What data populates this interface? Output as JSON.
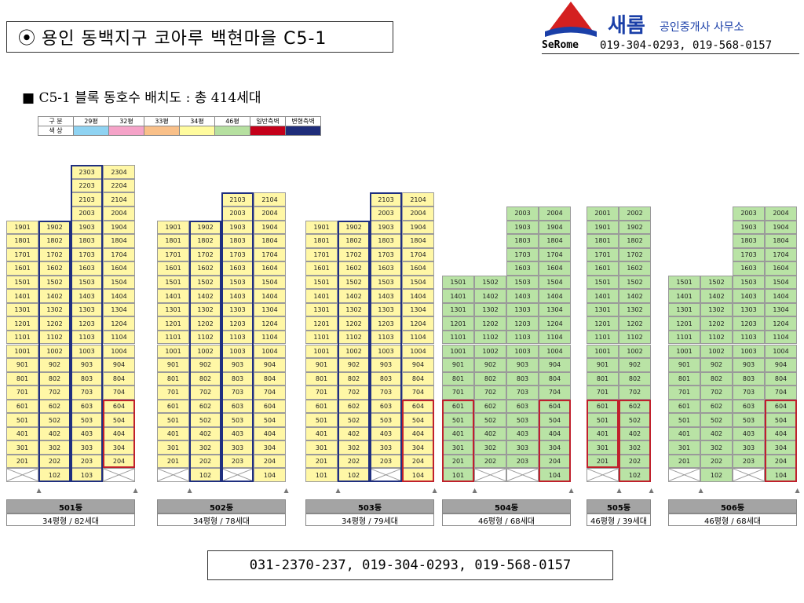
{
  "header": {
    "bullet": "⦿",
    "title": "용인 동백지구 코아루 백현마을 C5-1"
  },
  "logo": {
    "brand": "새롬",
    "office": "공인중개사 사무소",
    "latin": "SeRome",
    "phones": "019-304-0293, 019-568-0157",
    "colors": {
      "red": "#d42020",
      "blue": "#1a3fa8"
    }
  },
  "subtitle": "■ C5-1 블록 동호수 배치도 : 총 414세대",
  "legend": {
    "row1": [
      "구 분",
      "29평",
      "32평",
      "33평",
      "34평",
      "46평",
      "일반측벽",
      "변형측벽"
    ],
    "row2_label": "색 상",
    "colors": [
      "#8fd3f2",
      "#f5a3c8",
      "#f9c089",
      "#fffb9e",
      "#b6e0a0",
      "#c4001a",
      "#1f2d7a"
    ]
  },
  "colors": {
    "yellow": "#fff7a6",
    "green": "#b9e3a5",
    "red_border": "#c0202c",
    "blue_border": "#1f2f80"
  },
  "buildings": [
    {
      "id": "501",
      "label": "501동",
      "info": "34평형 / 82세대",
      "color": "yellow",
      "top_floor": 23,
      "floor1": [
        "",
        "102",
        "103",
        ""
      ],
      "col_tops": [
        19,
        19,
        23,
        23
      ],
      "x_letter": [
        0,
        3
      ],
      "blue_cols": [
        1,
        2
      ],
      "red_cols": [
        {
          "col": 3,
          "top": 6,
          "bottom": 2
        }
      ]
    },
    {
      "id": "502",
      "label": "502동",
      "info": "34평형 / 78세대",
      "color": "yellow",
      "top_floor": 21,
      "floor1": [
        "",
        "102",
        "",
        "104"
      ],
      "col_tops": [
        19,
        19,
        21,
        21
      ],
      "x_letter": [
        0,
        2
      ],
      "blue_cols": [
        1,
        2
      ],
      "red_cols": []
    },
    {
      "id": "503",
      "label": "503동",
      "info": "34평형 / 79세대",
      "color": "yellow",
      "top_floor": 21,
      "floor1": [
        "101",
        "102",
        "",
        "104"
      ],
      "col_tops": [
        19,
        19,
        21,
        21
      ],
      "x_letter": [
        2
      ],
      "blue_cols": [
        1,
        2
      ],
      "red_cols": [
        {
          "col": 3,
          "top": 6,
          "bottom": 1
        }
      ]
    },
    {
      "id": "504",
      "label": "504동",
      "info": "46평형 / 68세대",
      "color": "green",
      "top_floor": 20,
      "floor1": [
        "101",
        "",
        "",
        "104"
      ],
      "col_tops": [
        15,
        15,
        20,
        20
      ],
      "x_letter": [
        1,
        2
      ],
      "blue_cols": [],
      "red_cols": [
        {
          "col": 0,
          "top": 6,
          "bottom": 1
        },
        {
          "col": 3,
          "top": 6,
          "bottom": 1
        }
      ]
    },
    {
      "id": "505",
      "label": "505동",
      "info": "46평형 / 39세대",
      "color": "green",
      "top_floor": 20,
      "floor1": [
        "",
        "102"
      ],
      "col_tops": [
        20,
        20
      ],
      "x_letter": [
        0
      ],
      "blue_cols": [],
      "red_cols": [
        {
          "col": 0,
          "top": 6,
          "bottom": 2
        },
        {
          "col": 1,
          "top": 6,
          "bottom": 1
        }
      ]
    },
    {
      "id": "506",
      "label": "506동",
      "info": "46평형 / 68세대",
      "color": "green",
      "top_floor": 20,
      "floor1": [
        "",
        "102",
        "",
        "104"
      ],
      "col_tops": [
        15,
        15,
        20,
        20
      ],
      "x_letter": [
        0,
        2
      ],
      "blue_cols": [],
      "red_cols": [
        {
          "col": 3,
          "top": 6,
          "bottom": 1
        }
      ]
    }
  ],
  "footer": {
    "contacts": "031-2370-237, 019-304-0293, 019-568-0157"
  }
}
